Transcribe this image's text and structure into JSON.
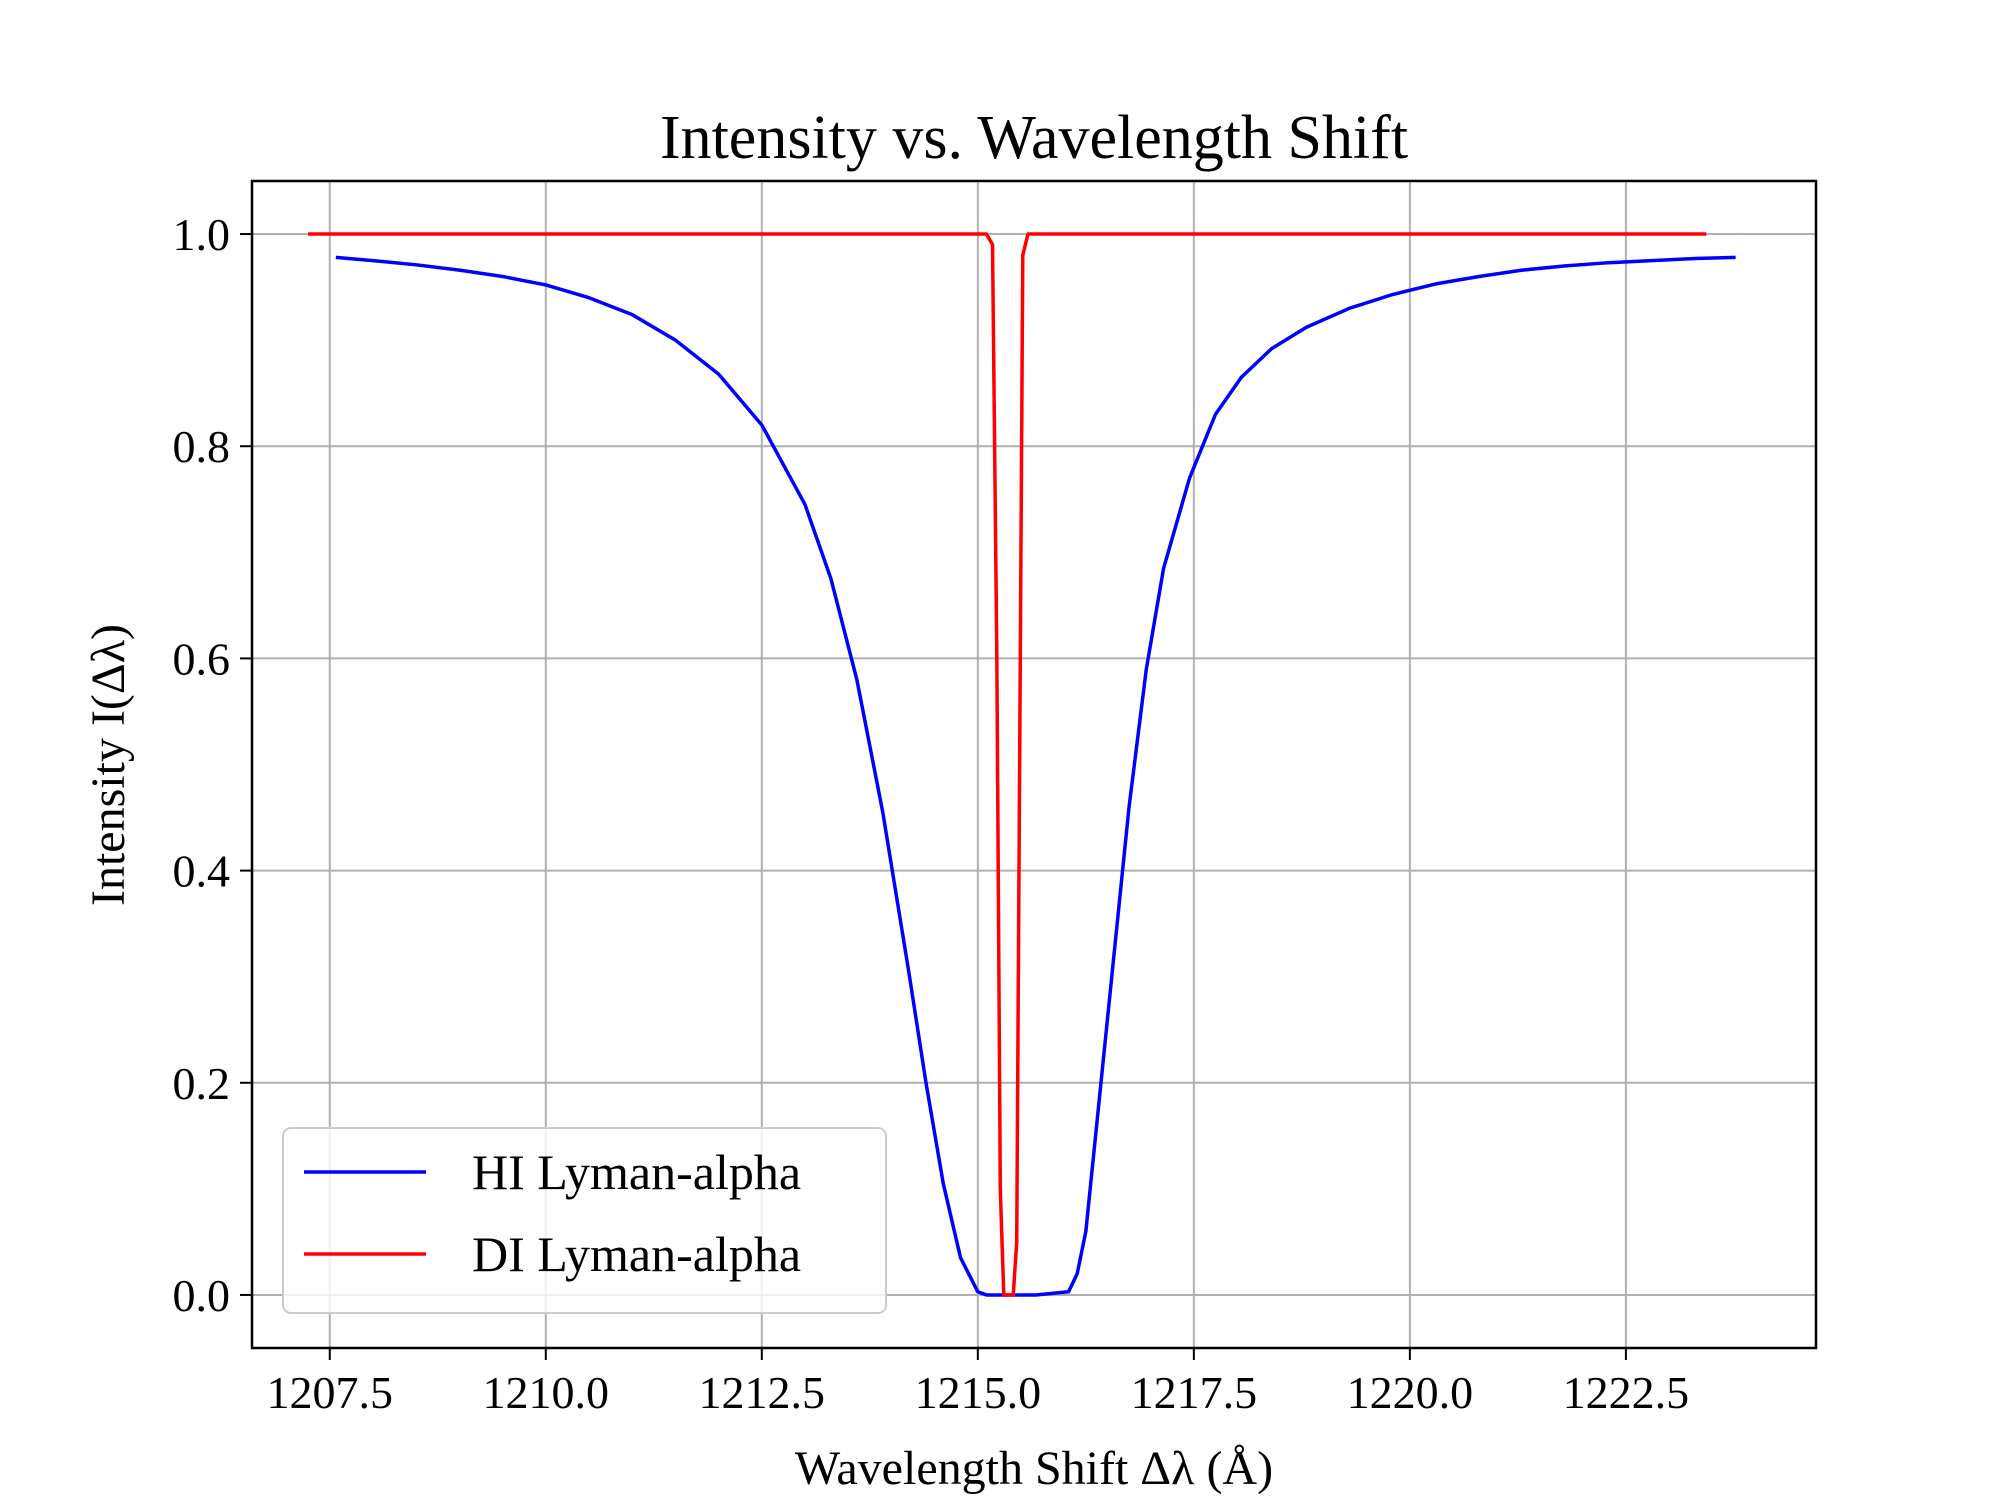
{
  "chart_data": {
    "type": "line",
    "title": "Intensity vs. Wavelength Shift",
    "xlabel": "Wavelength Shift Δλ (Å)",
    "ylabel": "Intensity I(Δλ)",
    "xlim": [
      1206.6,
      1224.7
    ],
    "ylim": [
      -0.05,
      1.05
    ],
    "xticks": [
      1207.5,
      1210.0,
      1212.5,
      1215.0,
      1217.5,
      1220.0,
      1222.5
    ],
    "xtick_labels": [
      "1207.5",
      "1210.0",
      "1212.5",
      "1215.0",
      "1217.5",
      "1220.0",
      "1222.5"
    ],
    "yticks": [
      0.0,
      0.2,
      0.4,
      0.6,
      0.8,
      1.0
    ],
    "ytick_labels": [
      "0.0",
      "0.2",
      "0.4",
      "0.6",
      "0.8",
      "1.0"
    ],
    "grid": true,
    "legend_position": "lower-left",
    "series": [
      {
        "name": "HI Lyman-alpha",
        "color": "#0000ff",
        "x": [
          1207.57,
          1208.0,
          1208.5,
          1209.0,
          1209.5,
          1210.0,
          1210.5,
          1211.0,
          1211.5,
          1212.0,
          1212.5,
          1213.0,
          1213.3,
          1213.6,
          1213.9,
          1214.2,
          1214.4,
          1214.6,
          1214.8,
          1215.0,
          1215.1,
          1215.2,
          1215.3,
          1215.67,
          1216.05,
          1216.15,
          1216.25,
          1216.35,
          1216.55,
          1216.75,
          1216.95,
          1217.15,
          1217.45,
          1217.75,
          1218.05,
          1218.4,
          1218.8,
          1219.3,
          1219.8,
          1220.3,
          1220.8,
          1221.3,
          1221.8,
          1222.3,
          1222.8,
          1223.3,
          1223.77
        ],
        "y": [
          0.978,
          0.975,
          0.971,
          0.966,
          0.96,
          0.952,
          0.94,
          0.924,
          0.9,
          0.868,
          0.82,
          0.745,
          0.675,
          0.58,
          0.455,
          0.305,
          0.2,
          0.105,
          0.035,
          0.003,
          0.0,
          0.0,
          0.0,
          0.0,
          0.003,
          0.02,
          0.06,
          0.14,
          0.3,
          0.46,
          0.59,
          0.685,
          0.77,
          0.83,
          0.865,
          0.892,
          0.912,
          0.93,
          0.943,
          0.953,
          0.96,
          0.966,
          0.97,
          0.973,
          0.975,
          0.977,
          0.978
        ]
      },
      {
        "name": "DI Lyman-alpha",
        "color": "#ff0000",
        "x": [
          1207.25,
          1209.0,
          1211.0,
          1213.0,
          1214.5,
          1215.1,
          1215.17,
          1215.22,
          1215.26,
          1215.3,
          1215.33,
          1215.37,
          1215.41,
          1215.45,
          1215.48,
          1215.52,
          1215.58,
          1216.5,
          1218.5,
          1220.5,
          1222.5,
          1223.43
        ],
        "y": [
          1.0,
          1.0,
          1.0,
          1.0,
          1.0,
          1.0,
          0.99,
          0.6,
          0.1,
          0.0,
          0.0,
          0.0,
          0.0,
          0.05,
          0.45,
          0.98,
          1.0,
          1.0,
          1.0,
          1.0,
          1.0,
          1.0
        ]
      }
    ]
  }
}
